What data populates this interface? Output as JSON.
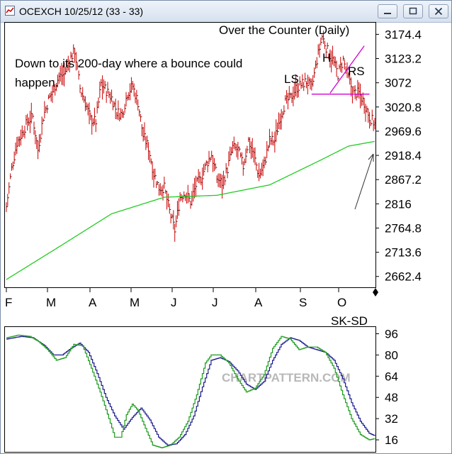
{
  "window": {
    "title": "OCEXCH 10/25/12 (33 - 33)",
    "controls": [
      "minimize",
      "maximize",
      "close"
    ]
  },
  "watermark": "CHARTPATTERN.COM",
  "chart_data": [
    {
      "type": "ohlc",
      "title": "Over the Counter (Daily)",
      "annotation": "Down to its 200-day where a bounce could happen.",
      "pattern_labels": [
        "LS",
        "H",
        "RS"
      ],
      "x_tick_labels": [
        "F",
        "M",
        "A",
        "M",
        "J",
        "J",
        "A",
        "S",
        "O"
      ],
      "y_tick_labels": [
        "3174.4",
        "3123.2",
        "3072",
        "3020.8",
        "2969.6",
        "2918.4",
        "2867.2",
        "2816",
        "2764.8",
        "2713.6",
        "2662.4"
      ],
      "ylim": [
        2641,
        3196
      ],
      "colors": {
        "bars": "#cc0000",
        "moving_average": "#22cc22",
        "neckline": "#d400d4",
        "trendline": "#d400d4"
      },
      "price_anchors": [
        [
          0,
          2810
        ],
        [
          4,
          2890
        ],
        [
          8,
          2945
        ],
        [
          12,
          2965
        ],
        [
          16,
          2990
        ],
        [
          20,
          3000
        ],
        [
          24,
          2930
        ],
        [
          28,
          3000
        ],
        [
          32,
          3035
        ],
        [
          36,
          3060
        ],
        [
          40,
          3085
        ],
        [
          44,
          3090
        ],
        [
          48,
          3120
        ],
        [
          52,
          3140
        ],
        [
          56,
          3060
        ],
        [
          60,
          3030
        ],
        [
          64,
          2995
        ],
        [
          68,
          2990
        ],
        [
          72,
          3070
        ],
        [
          76,
          3055
        ],
        [
          80,
          3040
        ],
        [
          84,
          3010
        ],
        [
          88,
          3005
        ],
        [
          92,
          3050
        ],
        [
          96,
          3065
        ],
        [
          100,
          3030
        ],
        [
          104,
          2960
        ],
        [
          108,
          2935
        ],
        [
          112,
          2880
        ],
        [
          116,
          2850
        ],
        [
          120,
          2850
        ],
        [
          124,
          2800
        ],
        [
          128,
          2760
        ],
        [
          132,
          2830
        ],
        [
          136,
          2840
        ],
        [
          140,
          2820
        ],
        [
          144,
          2855
        ],
        [
          148,
          2870
        ],
        [
          152,
          2900
        ],
        [
          156,
          2920
        ],
        [
          160,
          2870
        ],
        [
          164,
          2860
        ],
        [
          168,
          2890
        ],
        [
          172,
          2935
        ],
        [
          176,
          2930
        ],
        [
          180,
          2895
        ],
        [
          184,
          2950
        ],
        [
          188,
          2920
        ],
        [
          192,
          2875
        ],
        [
          196,
          2900
        ],
        [
          200,
          2950
        ],
        [
          204,
          2950
        ],
        [
          208,
          3000
        ],
        [
          212,
          3030
        ],
        [
          216,
          3040
        ],
        [
          220,
          3060
        ],
        [
          224,
          3068
        ],
        [
          228,
          3075
        ],
        [
          232,
          3060
        ],
        [
          236,
          3120
        ],
        [
          240,
          3170
        ],
        [
          244,
          3140
        ],
        [
          248,
          3120
        ],
        [
          252,
          3090
        ],
        [
          256,
          3120
        ],
        [
          260,
          3080
        ],
        [
          264,
          3050
        ],
        [
          268,
          3050
        ],
        [
          272,
          3030
        ],
        [
          276,
          3000
        ],
        [
          280,
          2985
        ]
      ],
      "moving_average_anchors": [
        [
          0,
          2656
        ],
        [
          40,
          2725
        ],
        [
          80,
          2795
        ],
        [
          120,
          2830
        ],
        [
          160,
          2834
        ],
        [
          200,
          2856
        ],
        [
          240,
          2910
        ],
        [
          260,
          2938
        ],
        [
          280,
          2948
        ]
      ],
      "neckline": {
        "from": [
          232,
          3048
        ],
        "to": [
          276,
          3048
        ]
      },
      "trendline": {
        "from": [
          246,
          3050
        ],
        "to": [
          272,
          3150
        ]
      },
      "bar_count": 281
    },
    {
      "type": "line",
      "title": "SK-SD",
      "y_tick_labels": [
        "96",
        "80",
        "64",
        "48",
        "32",
        "16"
      ],
      "ylim": [
        8,
        100
      ],
      "colors": {
        "sk": "#1a9a1a",
        "sd": "#1a1a8c"
      },
      "series": [
        {
          "name": "SK",
          "anchors": [
            [
              0,
              93
            ],
            [
              8,
              95
            ],
            [
              16,
              94
            ],
            [
              22,
              90
            ],
            [
              28,
              84
            ],
            [
              34,
              76
            ],
            [
              40,
              78
            ],
            [
              46,
              88
            ],
            [
              52,
              87
            ],
            [
              58,
              70
            ],
            [
              64,
              52
            ],
            [
              70,
              32
            ],
            [
              74,
              18
            ],
            [
              78,
              18
            ],
            [
              82,
              35
            ],
            [
              86,
              43
            ],
            [
              90,
              38
            ],
            [
              96,
              22
            ],
            [
              100,
              12
            ],
            [
              106,
              10
            ],
            [
              112,
              12
            ],
            [
              118,
              18
            ],
            [
              124,
              30
            ],
            [
              130,
              50
            ],
            [
              136,
              74
            ],
            [
              140,
              80
            ],
            [
              146,
              80
            ],
            [
              152,
              74
            ],
            [
              158,
              62
            ],
            [
              164,
              52
            ],
            [
              170,
              55
            ],
            [
              176,
              65
            ],
            [
              182,
              85
            ],
            [
              188,
              94
            ],
            [
              194,
              92
            ],
            [
              200,
              84
            ],
            [
              206,
              86
            ],
            [
              212,
              86
            ],
            [
              218,
              82
            ],
            [
              224,
              70
            ],
            [
              230,
              50
            ],
            [
              236,
              32
            ],
            [
              242,
              20
            ],
            [
              248,
              16
            ],
            [
              252,
              17
            ]
          ]
        },
        {
          "name": "SD",
          "anchors": [
            [
              0,
              92
            ],
            [
              10,
              94
            ],
            [
              18,
              93
            ],
            [
              26,
              87
            ],
            [
              32,
              80
            ],
            [
              38,
              80
            ],
            [
              44,
              85
            ],
            [
              50,
              89
            ],
            [
              56,
              82
            ],
            [
              62,
              66
            ],
            [
              68,
              48
            ],
            [
              74,
              34
            ],
            [
              80,
              24
            ],
            [
              86,
              33
            ],
            [
              92,
              40
            ],
            [
              98,
              31
            ],
            [
              104,
              18
            ],
            [
              110,
              12
            ],
            [
              116,
              13
            ],
            [
              122,
              20
            ],
            [
              128,
              34
            ],
            [
              134,
              56
            ],
            [
              140,
              76
            ],
            [
              146,
              78
            ],
            [
              152,
              75
            ],
            [
              158,
              68
            ],
            [
              164,
              58
            ],
            [
              170,
              54
            ],
            [
              176,
              60
            ],
            [
              182,
              76
            ],
            [
              188,
              88
            ],
            [
              194,
              93
            ],
            [
              200,
              91
            ],
            [
              206,
              86
            ],
            [
              212,
              84
            ],
            [
              218,
              82
            ],
            [
              224,
              76
            ],
            [
              230,
              62
            ],
            [
              236,
              44
            ],
            [
              242,
              30
            ],
            [
              248,
              21
            ],
            [
              252,
              19
            ]
          ]
        }
      ]
    }
  ]
}
